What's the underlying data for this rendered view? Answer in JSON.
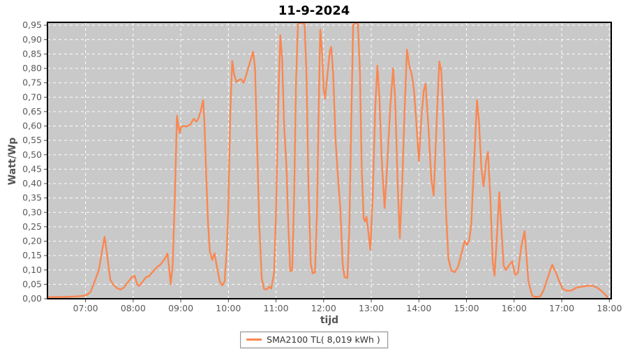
{
  "chart_data": {
    "type": "line",
    "title": "11-9-2024",
    "xlabel": "tijd",
    "ylabel": "Watt/Wp",
    "ylim": [
      0,
      0.96
    ],
    "xlim_hours": [
      6.2,
      18.04
    ],
    "grid": "white dashed gridlines on gray plot background, hourly vertical and 0.05 horizontal steps",
    "legend_position": "bottom-center",
    "colors": {
      "line": "#fa8750",
      "plot_bg": "#c9c9c9",
      "grid": "#ffffff",
      "frame": "#000000",
      "tick": "#444444",
      "tick_text": "#595959",
      "title_text": "#000000",
      "axis_label_text": "#555555",
      "legend_border": "#848484",
      "legend_bg": "#ffffff"
    },
    "y_ticks": [
      {
        "v": 0.0,
        "label": "0,00"
      },
      {
        "v": 0.05,
        "label": "0,05"
      },
      {
        "v": 0.1,
        "label": "0,10"
      },
      {
        "v": 0.15,
        "label": "0,15"
      },
      {
        "v": 0.2,
        "label": "0,20"
      },
      {
        "v": 0.25,
        "label": "0,25"
      },
      {
        "v": 0.3,
        "label": "0,30"
      },
      {
        "v": 0.35,
        "label": "0,35"
      },
      {
        "v": 0.4,
        "label": "0,40"
      },
      {
        "v": 0.45,
        "label": "0,45"
      },
      {
        "v": 0.5,
        "label": "0,50"
      },
      {
        "v": 0.55,
        "label": "0,55"
      },
      {
        "v": 0.6,
        "label": "0,60"
      },
      {
        "v": 0.65,
        "label": "0,65"
      },
      {
        "v": 0.7,
        "label": "0,70"
      },
      {
        "v": 0.75,
        "label": "0,75"
      },
      {
        "v": 0.8,
        "label": "0,80"
      },
      {
        "v": 0.85,
        "label": "0,85"
      },
      {
        "v": 0.9,
        "label": "0,90"
      },
      {
        "v": 0.95,
        "label": "0,95"
      }
    ],
    "x_ticks": [
      {
        "t": 7,
        "label": "07:00"
      },
      {
        "t": 8,
        "label": "08:00"
      },
      {
        "t": 9,
        "label": "09:00"
      },
      {
        "t": 10,
        "label": "10:00"
      },
      {
        "t": 11,
        "label": "11:00"
      },
      {
        "t": 12,
        "label": "12:00"
      },
      {
        "t": 13,
        "label": "13:00"
      },
      {
        "t": 14,
        "label": "14:00"
      },
      {
        "t": 15,
        "label": "15:00"
      },
      {
        "t": 16,
        "label": "16:00"
      },
      {
        "t": 17,
        "label": "17:00"
      },
      {
        "t": 18,
        "label": "18:00"
      }
    ],
    "series": [
      {
        "name": "SMA2100 TL( 8,019 kWh )",
        "color": "#fa8750",
        "points": [
          [
            6.21,
            0.005
          ],
          [
            6.4,
            0.006
          ],
          [
            6.6,
            0.006
          ],
          [
            6.8,
            0.008
          ],
          [
            6.95,
            0.01
          ],
          [
            7.02,
            0.013
          ],
          [
            7.1,
            0.022
          ],
          [
            7.18,
            0.055
          ],
          [
            7.28,
            0.1
          ],
          [
            7.34,
            0.16
          ],
          [
            7.4,
            0.215
          ],
          [
            7.44,
            0.17
          ],
          [
            7.48,
            0.115
          ],
          [
            7.52,
            0.066
          ],
          [
            7.58,
            0.05
          ],
          [
            7.65,
            0.038
          ],
          [
            7.73,
            0.032
          ],
          [
            7.8,
            0.038
          ],
          [
            7.88,
            0.055
          ],
          [
            7.97,
            0.075
          ],
          [
            8.03,
            0.08
          ],
          [
            8.08,
            0.052
          ],
          [
            8.12,
            0.044
          ],
          [
            8.2,
            0.06
          ],
          [
            8.27,
            0.075
          ],
          [
            8.33,
            0.078
          ],
          [
            8.42,
            0.095
          ],
          [
            8.5,
            0.11
          ],
          [
            8.57,
            0.118
          ],
          [
            8.65,
            0.135
          ],
          [
            8.72,
            0.157
          ],
          [
            8.76,
            0.1
          ],
          [
            8.79,
            0.05
          ],
          [
            8.83,
            0.12
          ],
          [
            8.88,
            0.38
          ],
          [
            8.92,
            0.635
          ],
          [
            8.95,
            0.6
          ],
          [
            8.98,
            0.575
          ],
          [
            9.0,
            0.595
          ],
          [
            9.05,
            0.6
          ],
          [
            9.12,
            0.598
          ],
          [
            9.2,
            0.605
          ],
          [
            9.27,
            0.625
          ],
          [
            9.33,
            0.615
          ],
          [
            9.38,
            0.63
          ],
          [
            9.43,
            0.66
          ],
          [
            9.47,
            0.69
          ],
          [
            9.5,
            0.6
          ],
          [
            9.53,
            0.45
          ],
          [
            9.57,
            0.27
          ],
          [
            9.61,
            0.165
          ],
          [
            9.66,
            0.135
          ],
          [
            9.71,
            0.158
          ],
          [
            9.76,
            0.11
          ],
          [
            9.82,
            0.06
          ],
          [
            9.87,
            0.046
          ],
          [
            9.92,
            0.06
          ],
          [
            9.97,
            0.18
          ],
          [
            10.0,
            0.33
          ],
          [
            10.04,
            0.65
          ],
          [
            10.08,
            0.826
          ],
          [
            10.12,
            0.78
          ],
          [
            10.17,
            0.752
          ],
          [
            10.22,
            0.76
          ],
          [
            10.27,
            0.762
          ],
          [
            10.32,
            0.75
          ],
          [
            10.38,
            0.78
          ],
          [
            10.45,
            0.82
          ],
          [
            10.52,
            0.858
          ],
          [
            10.56,
            0.8
          ],
          [
            10.6,
            0.55
          ],
          [
            10.65,
            0.25
          ],
          [
            10.7,
            0.07
          ],
          [
            10.75,
            0.034
          ],
          [
            10.8,
            0.032
          ],
          [
            10.86,
            0.042
          ],
          [
            10.9,
            0.035
          ],
          [
            10.96,
            0.09
          ],
          [
            11.0,
            0.3
          ],
          [
            11.05,
            0.7
          ],
          [
            11.09,
            0.915
          ],
          [
            11.13,
            0.83
          ],
          [
            11.17,
            0.6
          ],
          [
            11.22,
            0.455
          ],
          [
            11.26,
            0.25
          ],
          [
            11.3,
            0.095
          ],
          [
            11.34,
            0.1
          ],
          [
            11.38,
            0.35
          ],
          [
            11.42,
            0.75
          ],
          [
            11.46,
            0.953
          ],
          [
            11.5,
            0.958
          ],
          [
            11.55,
            0.957
          ],
          [
            11.6,
            0.955
          ],
          [
            11.64,
            0.78
          ],
          [
            11.68,
            0.4
          ],
          [
            11.73,
            0.12
          ],
          [
            11.77,
            0.088
          ],
          [
            11.82,
            0.092
          ],
          [
            11.86,
            0.3
          ],
          [
            11.9,
            0.7
          ],
          [
            11.93,
            0.935
          ],
          [
            11.97,
            0.85
          ],
          [
            12.0,
            0.73
          ],
          [
            12.03,
            0.695
          ],
          [
            12.08,
            0.78
          ],
          [
            12.13,
            0.86
          ],
          [
            12.16,
            0.875
          ],
          [
            12.2,
            0.78
          ],
          [
            12.25,
            0.55
          ],
          [
            12.31,
            0.4
          ],
          [
            12.35,
            0.315
          ],
          [
            12.4,
            0.12
          ],
          [
            12.44,
            0.075
          ],
          [
            12.5,
            0.072
          ],
          [
            12.54,
            0.25
          ],
          [
            12.58,
            0.62
          ],
          [
            12.62,
            0.95
          ],
          [
            12.67,
            0.958
          ],
          [
            12.72,
            0.955
          ],
          [
            12.76,
            0.8
          ],
          [
            12.8,
            0.45
          ],
          [
            12.84,
            0.28
          ],
          [
            12.87,
            0.268
          ],
          [
            12.9,
            0.285
          ],
          [
            12.94,
            0.23
          ],
          [
            12.98,
            0.17
          ],
          [
            13.03,
            0.35
          ],
          [
            13.08,
            0.65
          ],
          [
            13.13,
            0.81
          ],
          [
            13.17,
            0.7
          ],
          [
            13.22,
            0.48
          ],
          [
            13.28,
            0.315
          ],
          [
            13.33,
            0.45
          ],
          [
            13.4,
            0.67
          ],
          [
            13.46,
            0.8
          ],
          [
            13.5,
            0.7
          ],
          [
            13.55,
            0.42
          ],
          [
            13.6,
            0.21
          ],
          [
            13.65,
            0.4
          ],
          [
            13.7,
            0.65
          ],
          [
            13.75,
            0.865
          ],
          [
            13.8,
            0.81
          ],
          [
            13.85,
            0.778
          ],
          [
            13.9,
            0.72
          ],
          [
            13.96,
            0.58
          ],
          [
            14.0,
            0.478
          ],
          [
            14.05,
            0.62
          ],
          [
            14.1,
            0.72
          ],
          [
            14.14,
            0.747
          ],
          [
            14.2,
            0.6
          ],
          [
            14.26,
            0.42
          ],
          [
            14.31,
            0.358
          ],
          [
            14.37,
            0.6
          ],
          [
            14.43,
            0.824
          ],
          [
            14.47,
            0.79
          ],
          [
            14.52,
            0.6
          ],
          [
            14.57,
            0.3
          ],
          [
            14.62,
            0.14
          ],
          [
            14.68,
            0.098
          ],
          [
            14.75,
            0.092
          ],
          [
            14.82,
            0.11
          ],
          [
            14.9,
            0.16
          ],
          [
            14.96,
            0.2
          ],
          [
            15.01,
            0.187
          ],
          [
            15.06,
            0.205
          ],
          [
            15.1,
            0.26
          ],
          [
            15.16,
            0.48
          ],
          [
            15.22,
            0.69
          ],
          [
            15.26,
            0.62
          ],
          [
            15.31,
            0.46
          ],
          [
            15.36,
            0.39
          ],
          [
            15.41,
            0.475
          ],
          [
            15.45,
            0.51
          ],
          [
            15.5,
            0.35
          ],
          [
            15.55,
            0.13
          ],
          [
            15.59,
            0.08
          ],
          [
            15.64,
            0.22
          ],
          [
            15.69,
            0.37
          ],
          [
            15.73,
            0.25
          ],
          [
            15.78,
            0.115
          ],
          [
            15.83,
            0.1
          ],
          [
            15.9,
            0.118
          ],
          [
            15.96,
            0.13
          ],
          [
            16.02,
            0.082
          ],
          [
            16.08,
            0.09
          ],
          [
            16.15,
            0.18
          ],
          [
            16.22,
            0.235
          ],
          [
            16.3,
            0.06
          ],
          [
            16.38,
            0.01
          ],
          [
            16.45,
            0.006
          ],
          [
            16.55,
            0.008
          ],
          [
            16.62,
            0.03
          ],
          [
            16.7,
            0.07
          ],
          [
            16.8,
            0.118
          ],
          [
            16.88,
            0.09
          ],
          [
            16.95,
            0.06
          ],
          [
            17.02,
            0.035
          ],
          [
            17.1,
            0.028
          ],
          [
            17.2,
            0.028
          ],
          [
            17.3,
            0.038
          ],
          [
            17.42,
            0.042
          ],
          [
            17.55,
            0.045
          ],
          [
            17.65,
            0.045
          ],
          [
            17.75,
            0.038
          ],
          [
            17.85,
            0.025
          ],
          [
            17.93,
            0.012
          ],
          [
            17.98,
            0.0
          ]
        ]
      }
    ]
  }
}
